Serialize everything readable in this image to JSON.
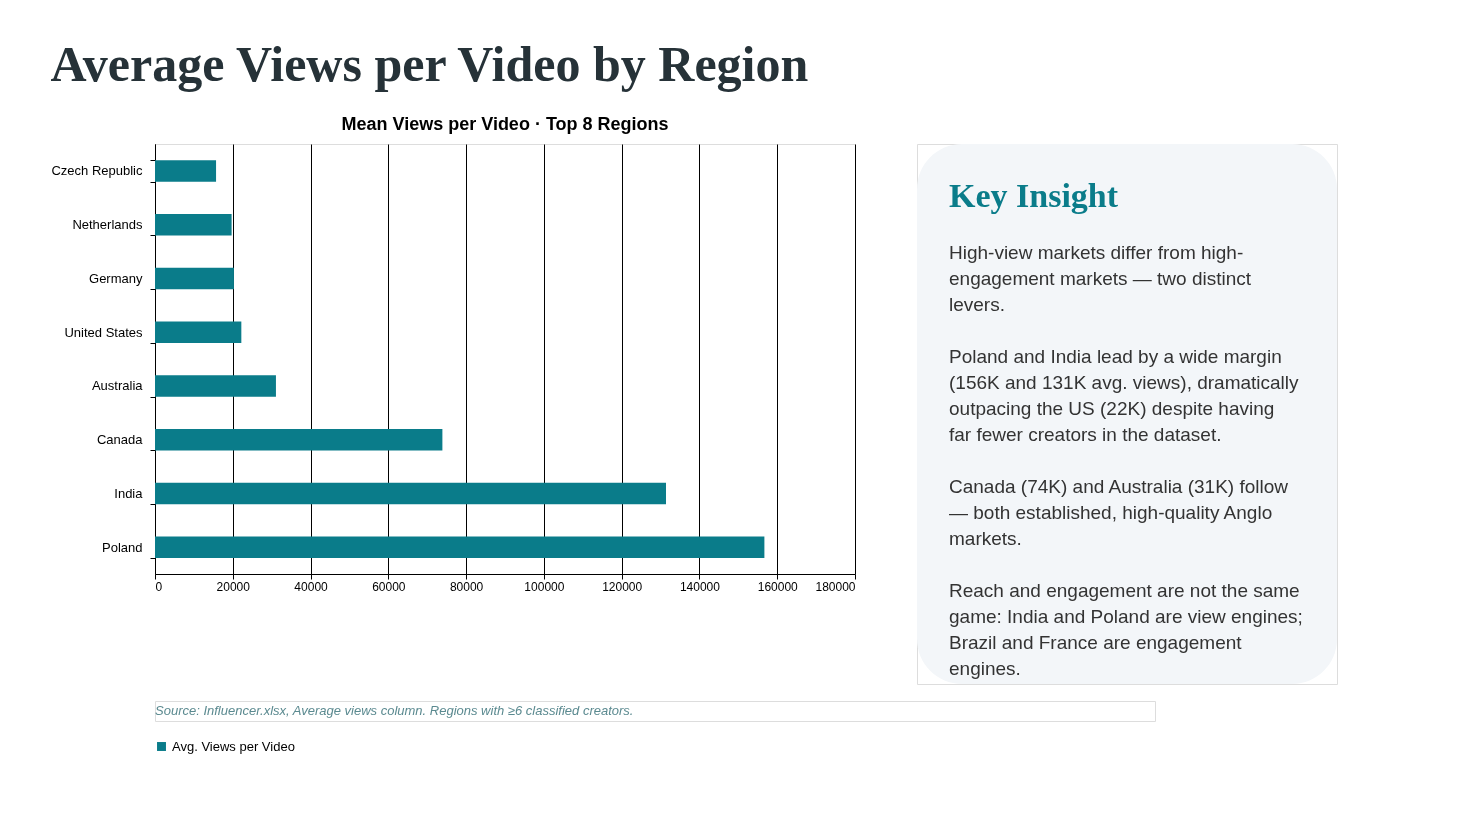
{
  "chart_data": {
    "type": "bar",
    "orientation": "horizontal",
    "title": "Average Views per Video by Region",
    "subtitle": "Mean Views per Video · Top 8 Regions",
    "categories": [
      "Czech Republic",
      "Netherlands",
      "Germany",
      "United States",
      "Australia",
      "Canada",
      "India",
      "Poland"
    ],
    "series": [
      {
        "name": "Avg. Views per Video",
        "color": "#0a7c8a",
        "values": [
          15700,
          19700,
          20300,
          22200,
          31100,
          73900,
          131400,
          156700
        ]
      }
    ],
    "xlim": [
      0,
      180000
    ],
    "xticks": [
      0,
      20000,
      40000,
      60000,
      80000,
      100000,
      120000,
      140000,
      160000,
      180000
    ],
    "grid": "x",
    "legend": "bottom",
    "annotations": [
      "Key Insight",
      "High-view markets differ from high-engagement markets — two distinct levers.",
      "Poland and India lead by a wide margin (156K and 131K avg. views), dramatically outpacing the US (22K) despite having far fewer creators in the dataset.",
      "Canada (74K) and Australia (31K) follow — both established, high-quality Anglo markets.",
      "Reach and engagement are not the same game: India and Poland are view engines; Brazil and France are engagement engines.",
      "Source: Influencer.xlsx, Average views column. Regions with ≥6 classified creators."
    ]
  }
}
